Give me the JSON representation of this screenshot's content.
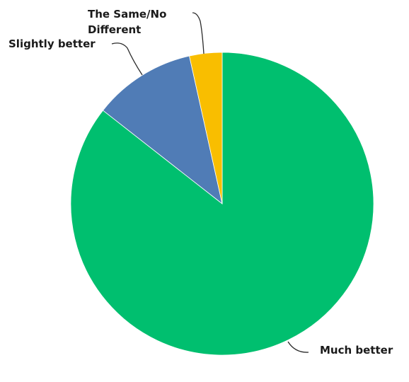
{
  "chart_data": {
    "type": "pie",
    "title": "",
    "start_angle_deg": 0,
    "direction": "clockwise",
    "slices": [
      {
        "label": "Much better",
        "value": 86,
        "color": "#00bf6f"
      },
      {
        "label": "Slightly better",
        "value": 11,
        "color": "#507cb6"
      },
      {
        "label": "The Same/No Different",
        "value": 3.5,
        "color": "#f9be00"
      }
    ],
    "label_lines": {
      "Much better": [
        "Much better"
      ],
      "Slightly better": [
        "Slightly better"
      ],
      "The Same/No Different": [
        "The Same/No",
        "Different"
      ]
    }
  }
}
